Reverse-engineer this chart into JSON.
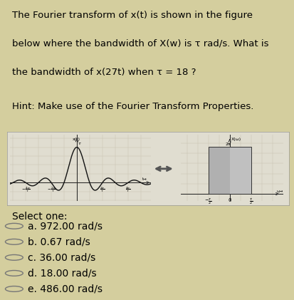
{
  "bg_color": "#d4ce9e",
  "title_line1": "The Fourier transform of x(t) is shown in the figure",
  "title_line2": "below where the bandwidth of X(w) is τ rad/s. What is",
  "title_line3": "the bandwidth of x(27t) when τ = 18 ?",
  "hint_text": "Hint: Make use of the Fourier Transform Properties.",
  "options": [
    "a. 972.00 rad/s",
    "b. 0.67 rad/s",
    "c. 36.00 rad/s",
    "d. 18.00 rad/s",
    "e. 486.00 rad/s"
  ],
  "select_text": "Select one:",
  "panel_bg": "#e0ddd0",
  "grid_color": "#c8c4b0",
  "sinc_color": "#111111",
  "rect_fill_left": "#b0b0b0",
  "rect_fill_right": "#c0c0c0",
  "rect_edge": "#333333",
  "arrow_color": "#555555",
  "title_fontsize": 9.5,
  "hint_fontsize": 9.5,
  "option_fontsize": 10.0,
  "select_fontsize": 10.0,
  "label_fontsize": 5.0,
  "tick_fontsize": 4.5
}
